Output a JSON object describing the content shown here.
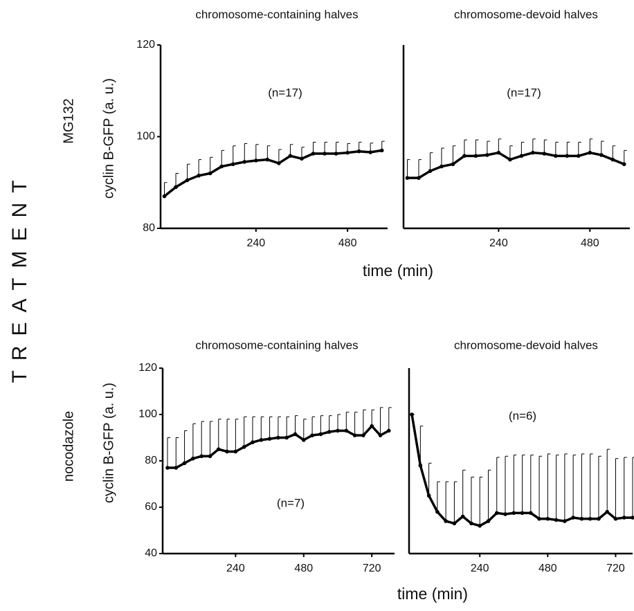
{
  "treatment_label": "TREATMENT",
  "chart_data": [
    {
      "type": "line",
      "title": "chromosome-containing halves",
      "row_label": "MG132",
      "ylabel": "cyclin B-GFP (a. u.)",
      "xlabel": "time (min)",
      "annotation": "(n=17)",
      "x": [
        0,
        30,
        60,
        90,
        120,
        150,
        180,
        210,
        240,
        270,
        300,
        330,
        360,
        390,
        420,
        450,
        480,
        510,
        540,
        570
      ],
      "series": [
        {
          "color": "#000000",
          "values": [
            87,
            89,
            90.5,
            91.5,
            92,
            93.5,
            94,
            94.5,
            94.8,
            95,
            94.2,
            95.8,
            95.2,
            96.3,
            96.3,
            96.3,
            96.5,
            96.8,
            96.6,
            97
          ],
          "errors": [
            3,
            3,
            3.5,
            3.5,
            3.5,
            3.5,
            4,
            4,
            3.5,
            3,
            3,
            2.5,
            2.5,
            2.5,
            2.5,
            2.5,
            2,
            2,
            2,
            2
          ]
        }
      ],
      "xlim": [
        -10,
        585
      ],
      "ylim": [
        80,
        120
      ],
      "xticks": [
        240,
        480
      ],
      "yticks": [
        80,
        100,
        120
      ]
    },
    {
      "type": "line",
      "title": "chromosome-devoid halves",
      "annotation": "(n=17)",
      "x": [
        0,
        30,
        60,
        90,
        120,
        150,
        180,
        210,
        240,
        270,
        300,
        330,
        360,
        390,
        420,
        450,
        480,
        510,
        540,
        570
      ],
      "series": [
        {
          "color": "#000000",
          "values": [
            91,
            91,
            92.5,
            93.5,
            94,
            95.8,
            95.8,
            96,
            96.5,
            95,
            95.8,
            96.5,
            96.3,
            95.8,
            95.8,
            95.8,
            96.5,
            96,
            95,
            94
          ],
          "errors": [
            4,
            4,
            4,
            4,
            4,
            3.5,
            3.5,
            3,
            3,
            3,
            3,
            3,
            3,
            3,
            3,
            3,
            3,
            3,
            3,
            3
          ]
        }
      ],
      "xlim": [
        -10,
        585
      ],
      "ylim": [
        80,
        120
      ],
      "xticks": [
        240,
        480
      ]
    },
    {
      "type": "line",
      "title": "chromosome-containing halves",
      "row_label": "nocodazole",
      "ylabel": "cyclin B-GFP (a. u.)",
      "xlabel": "time (min)",
      "annotation": "(n=7)",
      "x": [
        0,
        30,
        60,
        90,
        120,
        150,
        180,
        210,
        240,
        270,
        300,
        330,
        360,
        390,
        420,
        450,
        480,
        510,
        540,
        570,
        600,
        630,
        660,
        690,
        720,
        750,
        780
      ],
      "series": [
        {
          "color": "#000000",
          "values": [
            77,
            77,
            79,
            81,
            82,
            82,
            85,
            84,
            84,
            86,
            88,
            89,
            89.5,
            90,
            90,
            91.5,
            89,
            91,
            91.5,
            92.5,
            93,
            93,
            91,
            91,
            95,
            91,
            93
          ],
          "errors": [
            13,
            13,
            14,
            15,
            15,
            15,
            13,
            14,
            14,
            13,
            11,
            10,
            9.5,
            9,
            9,
            8,
            9,
            8,
            8,
            7,
            7,
            8,
            10,
            11,
            7,
            12,
            10
          ]
        }
      ],
      "xlim": [
        -17,
        800
      ],
      "ylim": [
        40,
        120
      ],
      "xticks": [
        240,
        480,
        720
      ],
      "yticks": [
        40,
        60,
        80,
        100,
        120
      ]
    },
    {
      "type": "line",
      "title": "chromosome-devoid halves",
      "annotation": "(n=6)",
      "x": [
        0,
        30,
        60,
        90,
        120,
        150,
        180,
        210,
        240,
        270,
        300,
        330,
        360,
        390,
        420,
        450,
        480,
        510,
        540,
        570,
        600,
        630,
        660,
        690,
        720,
        750,
        780
      ],
      "series": [
        {
          "color": "#000000",
          "values": [
            100,
            78,
            65,
            58,
            54,
            53,
            56,
            53,
            52,
            54,
            57.5,
            57,
            57.5,
            57.5,
            57.5,
            55,
            55,
            54.5,
            54,
            55.5,
            55,
            55,
            55,
            58,
            55,
            55.5,
            55.5
          ],
          "errors": [
            0,
            17,
            14,
            13,
            17,
            18,
            20,
            20,
            21,
            22,
            24,
            25,
            25,
            25,
            25,
            27,
            28,
            28,
            29,
            27,
            28,
            28,
            27,
            27,
            26,
            26,
            26
          ]
        }
      ],
      "xlim": [
        -10,
        780
      ],
      "ylim": [
        40,
        120
      ],
      "xticks": [
        240,
        480,
        720
      ]
    }
  ]
}
